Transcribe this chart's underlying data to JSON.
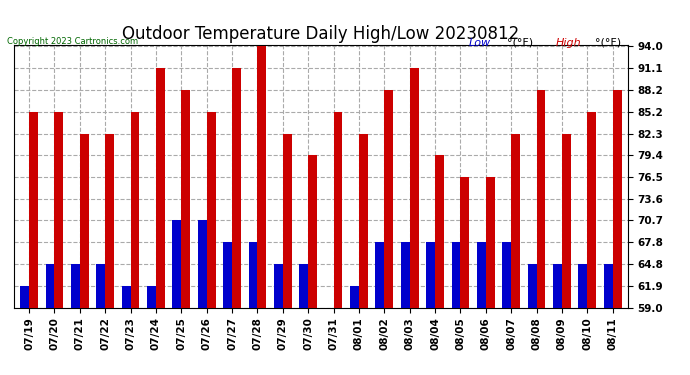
{
  "title": "Outdoor Temperature Daily High/Low 20230812",
  "copyright": "Copyright 2023 Cartronics.com",
  "categories": [
    "07/19",
    "07/20",
    "07/21",
    "07/22",
    "07/23",
    "07/24",
    "07/25",
    "07/26",
    "07/27",
    "07/28",
    "07/29",
    "07/30",
    "07/31",
    "08/01",
    "08/02",
    "08/03",
    "08/04",
    "08/05",
    "08/06",
    "08/07",
    "08/08",
    "08/09",
    "08/10",
    "08/11"
  ],
  "high_values": [
    85.2,
    85.2,
    82.3,
    82.3,
    85.2,
    91.1,
    88.2,
    85.2,
    91.1,
    94.0,
    82.3,
    79.4,
    85.2,
    82.3,
    88.2,
    91.1,
    79.4,
    76.5,
    76.5,
    82.3,
    88.2,
    82.3,
    85.2,
    88.2
  ],
  "low_values": [
    61.9,
    64.8,
    64.8,
    64.8,
    61.9,
    61.9,
    70.7,
    70.7,
    67.8,
    67.8,
    64.8,
    64.8,
    59.0,
    61.9,
    67.8,
    67.8,
    67.8,
    67.8,
    67.8,
    67.8,
    64.8,
    64.8,
    64.8,
    64.8
  ],
  "high_color": "#cc0000",
  "low_color": "#0000cc",
  "ylim_min": 59.0,
  "ylim_max": 94.0,
  "yticks": [
    59.0,
    61.9,
    64.8,
    67.8,
    70.7,
    73.6,
    76.5,
    79.4,
    82.3,
    85.2,
    88.2,
    91.1,
    94.0
  ],
  "bg_color": "#ffffff",
  "grid_color": "#aaaaaa",
  "title_fontsize": 12,
  "tick_fontsize": 7.5,
  "bar_width": 0.35,
  "legend_low_color": "#0000cc",
  "legend_high_color": "#cc0000"
}
